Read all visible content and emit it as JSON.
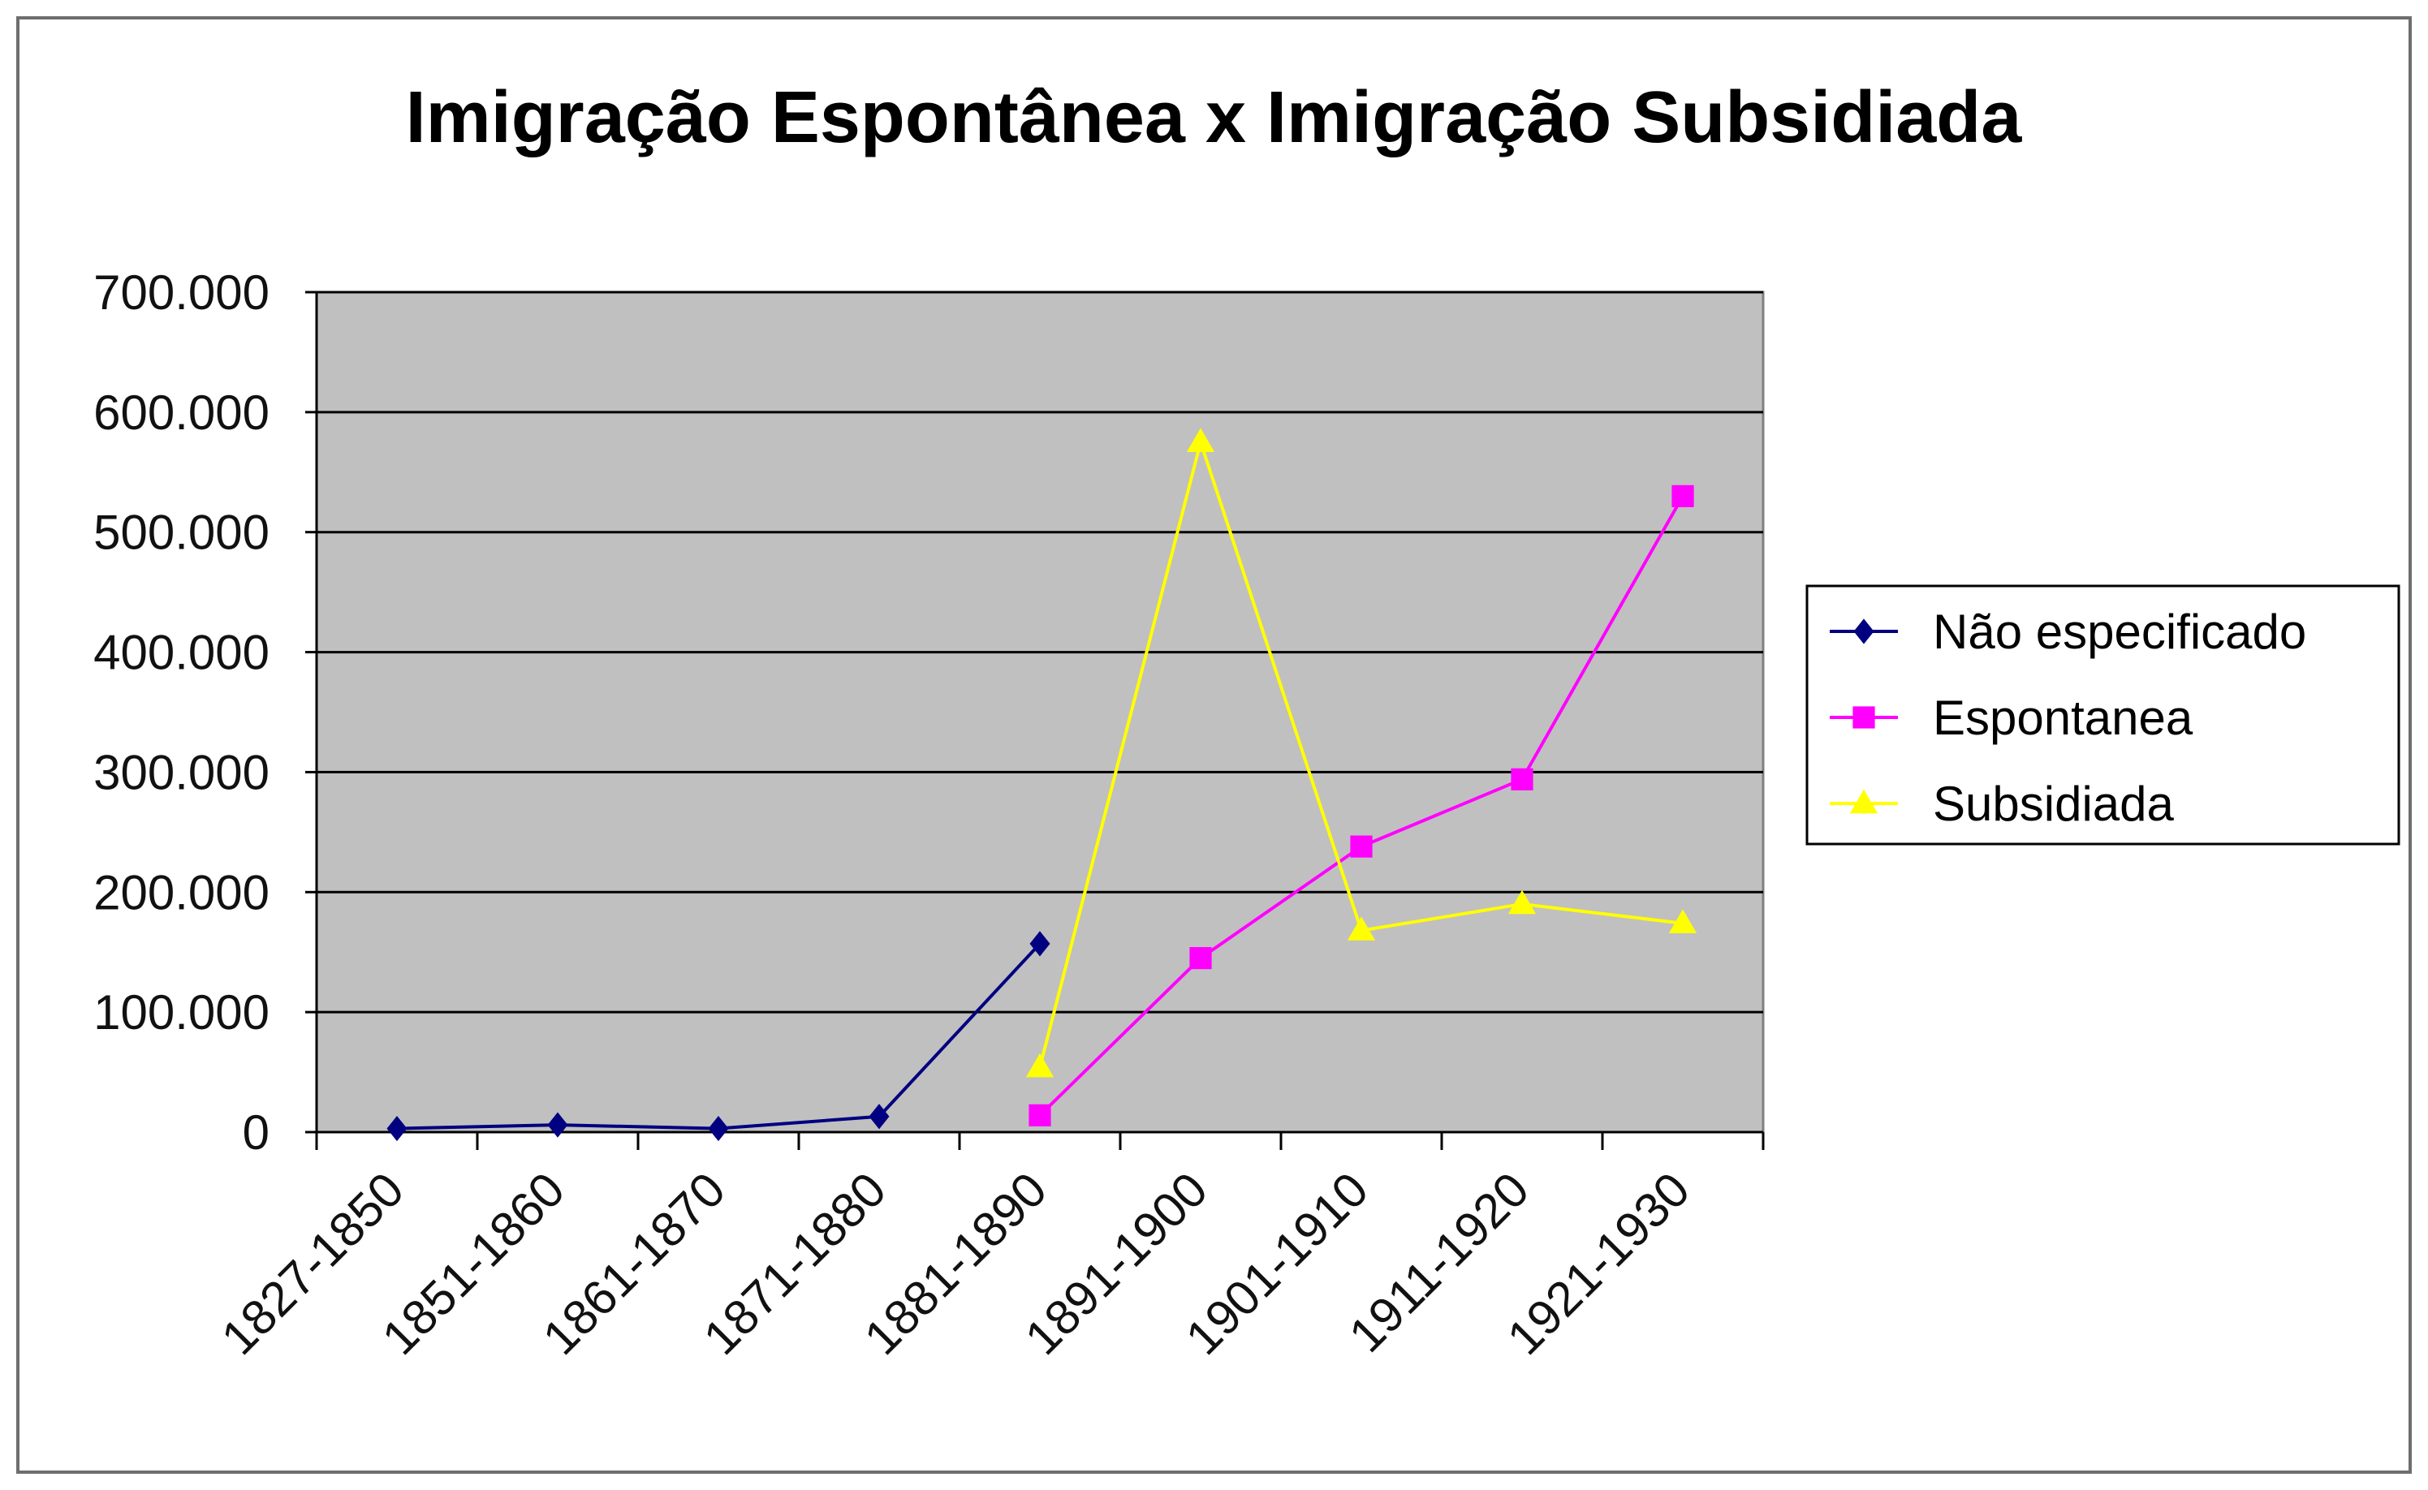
{
  "chart_data": {
    "type": "line",
    "title": "Imigração Espontânea x Imigração Subsidiada",
    "xlabel": "",
    "ylabel": "",
    "categories": [
      "1827-1850",
      "1851-1860",
      "1861-1870",
      "1871-1880",
      "1881-1890",
      "1891-1900",
      "1901-1910",
      "1911-1920",
      "1921-1930"
    ],
    "y_ticks": [
      "0",
      "100.000",
      "200.000",
      "300.000",
      "400.000",
      "500.000",
      "600.000",
      "700.000"
    ],
    "ylim": [
      0,
      700000
    ],
    "grid": true,
    "plot_background": "#c0c0c0",
    "legend_position": "right",
    "series": [
      {
        "name": "Não especificado",
        "color": "#000080",
        "marker": "diamond",
        "values": [
          3000,
          6000,
          3000,
          13000,
          157000,
          null,
          null,
          null,
          null
        ]
      },
      {
        "name": "Espontanea",
        "color": "#ff00ff",
        "marker": "square",
        "values": [
          null,
          null,
          null,
          null,
          14000,
          145000,
          238000,
          294000,
          530000
        ]
      },
      {
        "name": "Subsidiada",
        "color": "#ffff00",
        "marker": "triangle",
        "values": [
          null,
          null,
          null,
          null,
          54000,
          575000,
          168000,
          190000,
          174000
        ]
      }
    ]
  }
}
